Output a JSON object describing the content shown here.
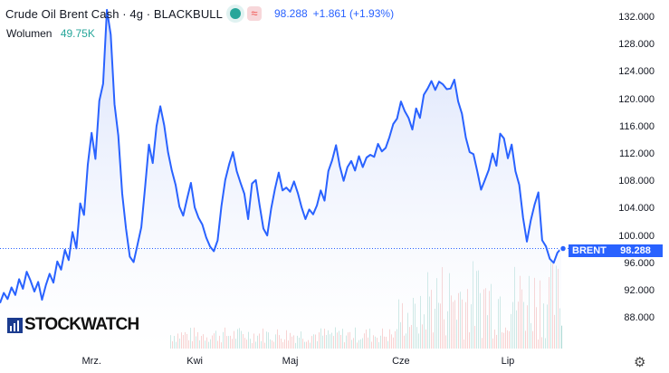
{
  "header": {
    "symbol": "Crude Oil Brent Cash · 4g · BLACKBULL",
    "price": "98.288",
    "change": "+1.861 (+1.93%)",
    "approx_icon": "≈",
    "volume_label": "Wolumen",
    "volume_value": "49.75K"
  },
  "price_tag": {
    "name": "BRENT",
    "value": "98.288"
  },
  "logo": {
    "text": "STOCKWATCH"
  },
  "settings_icon": "gear-icon",
  "colors": {
    "line": "#2962ff",
    "area": "#e8eeff",
    "vol_up": "#26a69a",
    "vol_down": "#ef5350",
    "ref": "#2962ff"
  },
  "chart_data": {
    "type": "area",
    "title": "",
    "xlabel": "",
    "ylabel": "",
    "ylim": [
      85.5,
      133.0
    ],
    "y_ticks": [
      88,
      92,
      96,
      100,
      104,
      108,
      112,
      116,
      120,
      124,
      128,
      132
    ],
    "y_tick_labels": [
      "88.000",
      "92.000",
      "96.000",
      "100.000",
      "104.000",
      "108.000",
      "112.000",
      "116.000",
      "120.000",
      "124.000",
      "128.000",
      "132.000"
    ],
    "x_tick_labels": [
      {
        "label": "Mrz.",
        "index": 24
      },
      {
        "label": "Kwi",
        "index": 51
      },
      {
        "label": "Maj",
        "index": 76
      },
      {
        "label": "Cze",
        "index": 105
      },
      {
        "label": "Lip",
        "index": 133
      }
    ],
    "last_price": 98.288,
    "series": [
      {
        "values": [
          90.3,
          91.8,
          90.9,
          92.6,
          91.5,
          93.8,
          92.4,
          94.9,
          93.6,
          92.0,
          93.4,
          90.8,
          92.9,
          94.6,
          93.3,
          96.4,
          95.2,
          98.1,
          96.6,
          100.7,
          98.3,
          104.9,
          103.2,
          110.6,
          115.2,
          111.4,
          119.9,
          122.4,
          133.2,
          129.6,
          119.4,
          114.8,
          106.3,
          101.2,
          97.1,
          96.3,
          98.8,
          101.4,
          107.3,
          113.5,
          110.8,
          116.2,
          119.1,
          116.3,
          112.4,
          109.7,
          107.6,
          104.4,
          103.1,
          105.6,
          107.9,
          104.3,
          102.8,
          101.8,
          99.9,
          98.6,
          97.9,
          99.5,
          104.5,
          108.3,
          110.6,
          112.4,
          109.6,
          107.9,
          106.3,
          102.6,
          107.8,
          108.3,
          104.6,
          101.2,
          100.2,
          104.1,
          107.0,
          109.4,
          106.8,
          107.2,
          106.6,
          108.1,
          106.4,
          104.3,
          102.6,
          104.0,
          103.3,
          104.6,
          106.8,
          105.3,
          109.6,
          111.2,
          113.4,
          110.3,
          108.2,
          110.2,
          111.1,
          109.7,
          111.8,
          110.2,
          111.6,
          112.0,
          111.7,
          113.6,
          112.5,
          113.0,
          114.6,
          116.5,
          117.3,
          119.8,
          118.4,
          117.4,
          115.7,
          118.8,
          117.4,
          120.8,
          121.7,
          122.8,
          121.5,
          122.7,
          122.3,
          121.6,
          121.7,
          123.0,
          119.8,
          118.0,
          114.5,
          112.4,
          112.1,
          109.6,
          106.9,
          108.3,
          109.8,
          112.2,
          110.4,
          115.1,
          114.4,
          111.5,
          113.5,
          109.6,
          107.6,
          102.8,
          99.3,
          102.4,
          104.7,
          106.5,
          99.5,
          98.6,
          96.8,
          96.2,
          97.7,
          98.3
        ]
      }
    ],
    "volume": {
      "max": 100,
      "values": [
        0,
        0,
        0,
        0,
        0,
        0,
        0,
        0,
        0,
        0,
        0,
        0,
        0,
        0,
        0,
        0,
        0,
        0,
        0,
        0,
        0,
        0,
        0,
        0,
        0,
        0,
        0,
        0,
        0,
        0,
        0,
        0,
        0,
        0,
        0,
        0,
        0,
        0,
        0,
        0,
        0,
        0,
        0,
        0,
        0,
        0,
        0,
        0,
        0,
        0,
        0,
        0,
        0,
        0,
        0,
        0,
        0,
        0,
        0,
        0,
        0,
        0,
        0,
        0,
        0,
        0,
        0,
        0,
        0,
        0,
        0,
        0,
        0,
        0,
        0,
        0,
        0,
        0,
        0,
        0,
        0,
        0,
        0,
        0,
        0,
        0,
        0,
        0,
        0,
        0,
        0,
        0,
        0,
        0,
        0,
        0,
        0,
        0,
        0,
        0,
        0,
        0,
        0,
        0,
        0,
        0,
        0,
        0,
        0,
        0,
        0,
        0,
        0,
        0,
        0,
        0,
        0,
        0,
        0,
        0,
        0,
        0,
        0,
        0,
        0,
        0,
        0,
        0,
        0,
        0,
        0,
        0,
        0,
        0,
        0,
        0,
        0,
        0,
        0,
        0,
        0,
        0,
        0,
        0,
        0,
        0,
        0,
        0,
        0,
        0,
        0,
        0
      ]
    }
  }
}
